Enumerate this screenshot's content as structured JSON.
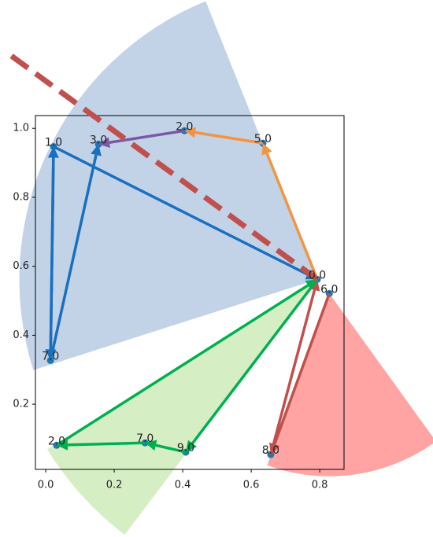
{
  "chart_data": {
    "type": "graph",
    "xlim": [
      -0.03,
      0.871
    ],
    "ylim": [
      0.011,
      1.037
    ],
    "xticks": [
      {
        "value": 0,
        "label": "0.0"
      },
      0.2,
      0.4,
      0.6,
      0.8
    ],
    "yticks": [
      0.2,
      0.4,
      0.6,
      0.8,
      {
        "value": 1,
        "label": "1.0"
      }
    ],
    "point_color": "#1f77b4",
    "points": [
      {
        "label": "0.0",
        "x": 0.793,
        "y": 0.562
      },
      {
        "label": "1.0",
        "x": 0.023,
        "y": 0.947
      },
      {
        "label": "2.0",
        "x": 0.405,
        "y": 0.993
      },
      {
        "label": "3.0",
        "x": 0.154,
        "y": 0.954
      },
      {
        "label": "5.0",
        "x": 0.634,
        "y": 0.957
      },
      {
        "label": "6.0",
        "x": 0.828,
        "y": 0.521
      },
      {
        "label": "7.0",
        "x": 0.014,
        "y": 0.327
      },
      {
        "label": "2.0",
        "x": 0.032,
        "y": 0.081
      },
      {
        "label": "7.0",
        "x": 0.29,
        "y": 0.088
      },
      {
        "label": "9.0",
        "x": 0.409,
        "y": 0.061
      },
      {
        "label": "8.0",
        "x": 0.657,
        "y": 0.054
      }
    ],
    "wedges": [
      {
        "center": [
          0.793,
          0.562
        ],
        "radius": 0.87,
        "theta": [
          112,
          197.6
        ],
        "color": "#c2d3e8"
      },
      {
        "center": [
          0.793,
          0.562
        ],
        "radius": 0.93,
        "theta": [
          212,
          232.8
        ],
        "color": "#d6eec4"
      },
      {
        "center": [
          0.828,
          0.521
        ],
        "radius": 0.53,
        "theta": [
          -110,
          -54
        ],
        "color": "#ffa3a3"
      }
    ],
    "arrows": [
      {
        "from": 6,
        "to": 1,
        "color": "#1a6fbf"
      },
      {
        "from": 1,
        "to": 0,
        "color": "#1a6fbf"
      },
      {
        "from": 6,
        "to": 3,
        "color": "#1a6fbf"
      },
      {
        "from": 1,
        "to": 6,
        "color": "#1a6fbf"
      },
      {
        "from": 0,
        "to": 4,
        "color": "#f39442"
      },
      {
        "from": 4,
        "to": 2,
        "color": "#f39442"
      },
      {
        "from": 2,
        "to": 3,
        "color": "#7b58a6"
      },
      {
        "from": 5,
        "to": 10,
        "color": "#c0504d"
      },
      {
        "from": 10,
        "to": 0,
        "color": "#c0504d"
      },
      {
        "from": 7,
        "to": 0,
        "color": "#00b04f"
      },
      {
        "from": 0,
        "to": 9,
        "color": "#00b04f"
      },
      {
        "from": 9,
        "to": 8,
        "color": "#00b04f"
      },
      {
        "from": 8,
        "to": 7,
        "color": "#00b04f"
      }
    ],
    "dashed_line": {
      "x": [
        -0.1,
        0.793
      ],
      "y": [
        1.21,
        0.562
      ],
      "color": "#c0504d"
    }
  }
}
